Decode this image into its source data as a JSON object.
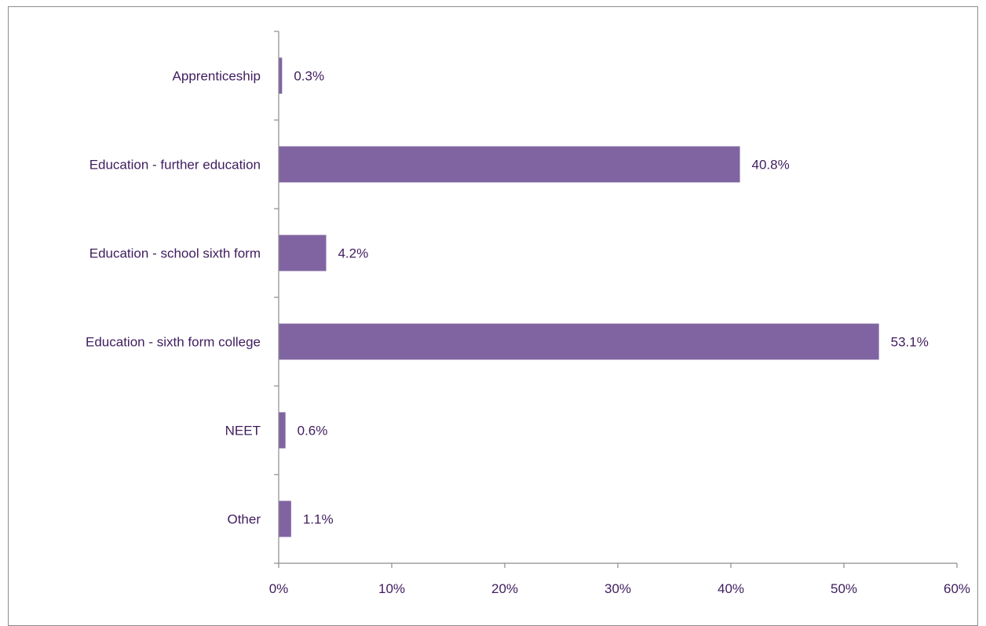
{
  "chart_data": {
    "type": "bar",
    "orientation": "horizontal",
    "categories": [
      "Apprenticeship",
      "Education - further education",
      "Education - school sixth form",
      "Education - sixth form college",
      "NEET",
      "Other"
    ],
    "values": [
      0.3,
      40.8,
      4.2,
      53.1,
      0.6,
      1.1
    ],
    "data_labels": [
      "0.3%",
      "40.8%",
      "4.2%",
      "53.1%",
      "0.6%",
      "1.1%"
    ],
    "title": "",
    "xlabel": "",
    "ylabel": "",
    "xlim": [
      0,
      60
    ],
    "x_ticks": [
      0,
      10,
      20,
      30,
      40,
      50,
      60
    ],
    "x_tick_labels": [
      "0%",
      "10%",
      "20%",
      "30%",
      "40%",
      "50%",
      "60%"
    ],
    "grid": false,
    "legend": "none",
    "colors": {
      "bar": "#8064a2",
      "text": "#3f1d5e",
      "axis": "#8c8c8c"
    }
  }
}
